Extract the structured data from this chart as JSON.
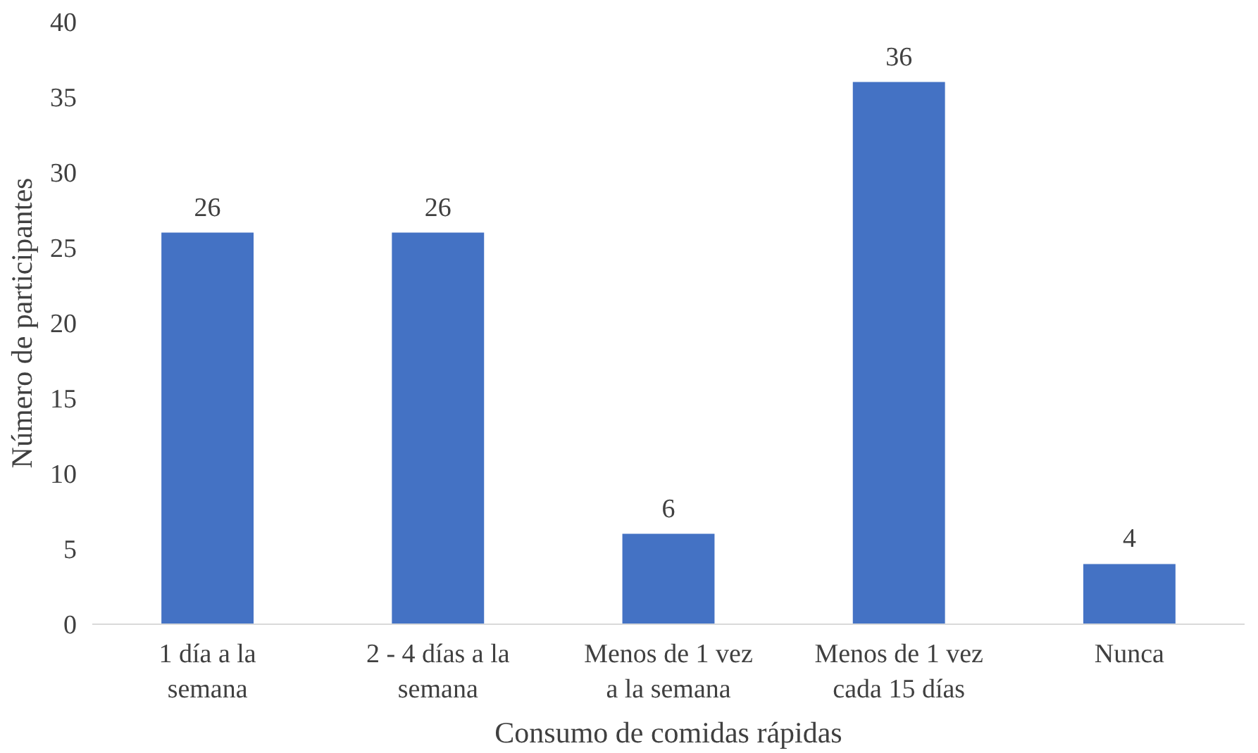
{
  "chart_data": {
    "type": "bar",
    "xlabel": "Consumo de comidas rápidas",
    "ylabel": "Número de participantes",
    "categories": [
      "1 día a la\nsemana",
      "2 - 4 días a la\nsemana",
      "Menos de 1 vez\na la semana",
      "Menos de 1 vez\ncada 15 días",
      "Nunca"
    ],
    "values": [
      26,
      26,
      6,
      36,
      4
    ],
    "color": "#4472c4",
    "ylim": [
      0,
      40
    ],
    "yticks": [
      0,
      5,
      10,
      15,
      20,
      25,
      30,
      35,
      40
    ],
    "grid": false,
    "data_labels": true
  }
}
